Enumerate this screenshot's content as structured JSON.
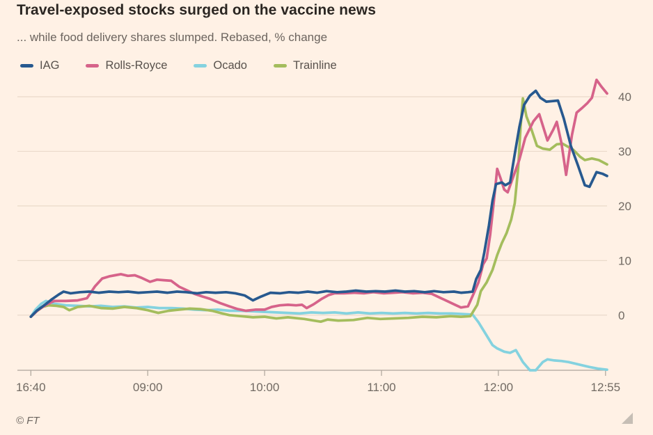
{
  "header": {
    "title": "Travel-exposed stocks surged on the vaccine news",
    "subtitle": "... while food delivery shares slumped. Rebased, % change"
  },
  "footer": {
    "source": "© FT"
  },
  "colors": {
    "background": "#FFF1E5",
    "title_text": "#2B2622",
    "subtitle_text": "#6B645E",
    "axis_text": "#716A63",
    "gridline": "#EADACA",
    "axis_line": "#ACA49A",
    "resize_corner": "#C6BEB5"
  },
  "chart_data": {
    "type": "line",
    "title": "Travel-exposed stocks surged on the vaccine news",
    "subtitle": "... while food delivery shares slumped. Rebased, % change",
    "ylabel": "Rebased, % change",
    "legend_position": "top-left",
    "x_axis": {
      "note": "x unit = one axis hour; 0 = 16:40 previous close, 1 = 09:00, 4 = 12:00, 4.917 = 12:55",
      "range": [
        -0.115,
        4.93
      ],
      "ticks": [
        {
          "x": 0,
          "label": "16:40"
        },
        {
          "x": 1,
          "label": "09:00"
        },
        {
          "x": 2,
          "label": "10:00"
        },
        {
          "x": 3,
          "label": "11:00"
        },
        {
          "x": 4,
          "label": "12:00"
        },
        {
          "x": 4.917,
          "label": "12:55"
        }
      ]
    },
    "y_axis": {
      "side": "right",
      "grid": true,
      "range": [
        -10.1,
        43.7
      ],
      "ticks": [
        0,
        10,
        20,
        30,
        40
      ]
    },
    "series": [
      {
        "name": "IAG",
        "color": "#27598F",
        "points": [
          [
            0,
            -0.3
          ],
          [
            0.05,
            0.8
          ],
          [
            0.12,
            1.9
          ],
          [
            0.18,
            2.9
          ],
          [
            0.24,
            3.8
          ],
          [
            0.28,
            4.3
          ],
          [
            0.34,
            4.0
          ],
          [
            0.42,
            4.2
          ],
          [
            0.5,
            4.3
          ],
          [
            0.58,
            4.1
          ],
          [
            0.67,
            4.3
          ],
          [
            0.75,
            4.2
          ],
          [
            0.83,
            4.3
          ],
          [
            0.92,
            4.1
          ],
          [
            1.0,
            4.2
          ],
          [
            1.08,
            4.3
          ],
          [
            1.17,
            4.1
          ],
          [
            1.25,
            4.3
          ],
          [
            1.33,
            4.2
          ],
          [
            1.42,
            4.0
          ],
          [
            1.5,
            4.2
          ],
          [
            1.58,
            4.1
          ],
          [
            1.67,
            4.2
          ],
          [
            1.75,
            4.0
          ],
          [
            1.83,
            3.6
          ],
          [
            1.9,
            2.7
          ],
          [
            1.97,
            3.4
          ],
          [
            2.05,
            4.1
          ],
          [
            2.13,
            4.0
          ],
          [
            2.21,
            4.2
          ],
          [
            2.29,
            4.1
          ],
          [
            2.37,
            4.3
          ],
          [
            2.45,
            4.1
          ],
          [
            2.53,
            4.4
          ],
          [
            2.62,
            4.2
          ],
          [
            2.7,
            4.3
          ],
          [
            2.78,
            4.5
          ],
          [
            2.87,
            4.3
          ],
          [
            2.95,
            4.4
          ],
          [
            3.03,
            4.3
          ],
          [
            3.12,
            4.5
          ],
          [
            3.2,
            4.3
          ],
          [
            3.28,
            4.4
          ],
          [
            3.37,
            4.2
          ],
          [
            3.45,
            4.4
          ],
          [
            3.53,
            4.2
          ],
          [
            3.62,
            4.3
          ],
          [
            3.68,
            4.1
          ],
          [
            3.74,
            4.2
          ],
          [
            3.78,
            4.3
          ],
          [
            3.81,
            6.6
          ],
          [
            3.85,
            8.3
          ],
          [
            3.88,
            11.5
          ],
          [
            3.92,
            16.5
          ],
          [
            3.95,
            21.0
          ],
          [
            3.98,
            24.0
          ],
          [
            4.03,
            24.3
          ],
          [
            4.06,
            23.8
          ],
          [
            4.1,
            24.3
          ],
          [
            4.14,
            29.5
          ],
          [
            4.18,
            34.5
          ],
          [
            4.22,
            38.5
          ],
          [
            4.27,
            40.2
          ],
          [
            4.32,
            41.1
          ],
          [
            4.36,
            39.8
          ],
          [
            4.41,
            39.1
          ],
          [
            4.46,
            39.2
          ],
          [
            4.51,
            39.3
          ],
          [
            4.56,
            36.0
          ],
          [
            4.62,
            31.0
          ],
          [
            4.68,
            27.5
          ],
          [
            4.74,
            23.8
          ],
          [
            4.78,
            23.5
          ],
          [
            4.84,
            26.2
          ],
          [
            4.89,
            25.9
          ],
          [
            4.93,
            25.5
          ]
        ]
      },
      {
        "name": "Rolls-Royce",
        "color": "#D6638A",
        "points": [
          [
            0,
            -0.3
          ],
          [
            0.06,
            0.9
          ],
          [
            0.13,
            1.9
          ],
          [
            0.2,
            2.6
          ],
          [
            0.3,
            2.6
          ],
          [
            0.4,
            2.7
          ],
          [
            0.48,
            3.1
          ],
          [
            0.55,
            5.3
          ],
          [
            0.61,
            6.7
          ],
          [
            0.67,
            7.1
          ],
          [
            0.72,
            7.3
          ],
          [
            0.77,
            7.5
          ],
          [
            0.83,
            7.2
          ],
          [
            0.89,
            7.3
          ],
          [
            0.95,
            6.8
          ],
          [
            1.02,
            6.1
          ],
          [
            1.08,
            6.5
          ],
          [
            1.14,
            6.4
          ],
          [
            1.2,
            6.3
          ],
          [
            1.27,
            5.2
          ],
          [
            1.33,
            4.6
          ],
          [
            1.4,
            3.9
          ],
          [
            1.47,
            3.4
          ],
          [
            1.53,
            3.0
          ],
          [
            1.62,
            2.2
          ],
          [
            1.7,
            1.6
          ],
          [
            1.77,
            1.1
          ],
          [
            1.84,
            0.8
          ],
          [
            1.92,
            1.0
          ],
          [
            2.0,
            1.0
          ],
          [
            2.06,
            1.5
          ],
          [
            2.13,
            1.8
          ],
          [
            2.2,
            1.9
          ],
          [
            2.27,
            1.8
          ],
          [
            2.32,
            1.9
          ],
          [
            2.36,
            1.3
          ],
          [
            2.42,
            2.0
          ],
          [
            2.49,
            3.0
          ],
          [
            2.55,
            3.7
          ],
          [
            2.6,
            4.0
          ],
          [
            2.68,
            4.0
          ],
          [
            2.77,
            4.1
          ],
          [
            2.85,
            4.0
          ],
          [
            2.93,
            4.2
          ],
          [
            3.02,
            4.0
          ],
          [
            3.1,
            4.1
          ],
          [
            3.18,
            4.2
          ],
          [
            3.27,
            4.0
          ],
          [
            3.35,
            4.1
          ],
          [
            3.43,
            3.9
          ],
          [
            3.5,
            3.2
          ],
          [
            3.57,
            2.5
          ],
          [
            3.63,
            1.9
          ],
          [
            3.68,
            1.4
          ],
          [
            3.74,
            1.6
          ],
          [
            3.79,
            4.0
          ],
          [
            3.83,
            6.0
          ],
          [
            3.87,
            9.3
          ],
          [
            3.9,
            10.4
          ],
          [
            3.93,
            14.7
          ],
          [
            3.96,
            20.5
          ],
          [
            3.99,
            26.8
          ],
          [
            4.02,
            25.0
          ],
          [
            4.05,
            23.0
          ],
          [
            4.08,
            22.5
          ],
          [
            4.13,
            25.5
          ],
          [
            4.18,
            28.5
          ],
          [
            4.23,
            32.5
          ],
          [
            4.3,
            35.5
          ],
          [
            4.35,
            36.8
          ],
          [
            4.42,
            32.0
          ],
          [
            4.47,
            34.0
          ],
          [
            4.5,
            35.4
          ],
          [
            4.54,
            31.5
          ],
          [
            4.58,
            25.7
          ],
          [
            4.63,
            33.0
          ],
          [
            4.67,
            37.1
          ],
          [
            4.72,
            38.0
          ],
          [
            4.76,
            38.8
          ],
          [
            4.8,
            39.8
          ],
          [
            4.84,
            43.1
          ],
          [
            4.88,
            41.9
          ],
          [
            4.93,
            40.6
          ]
        ]
      },
      {
        "name": "Ocado",
        "color": "#84D2DF",
        "points": [
          [
            0,
            -0.3
          ],
          [
            0.04,
            1.0
          ],
          [
            0.09,
            2.1
          ],
          [
            0.13,
            2.6
          ],
          [
            0.2,
            2.1
          ],
          [
            0.3,
            1.8
          ],
          [
            0.4,
            1.7
          ],
          [
            0.5,
            1.6
          ],
          [
            0.6,
            1.7
          ],
          [
            0.7,
            1.5
          ],
          [
            0.8,
            1.6
          ],
          [
            0.9,
            1.4
          ],
          [
            1.0,
            1.5
          ],
          [
            1.1,
            1.3
          ],
          [
            1.2,
            1.3
          ],
          [
            1.3,
            1.2
          ],
          [
            1.4,
            1.0
          ],
          [
            1.5,
            0.9
          ],
          [
            1.6,
            1.0
          ],
          [
            1.7,
            0.8
          ],
          [
            1.8,
            0.8
          ],
          [
            1.9,
            0.7
          ],
          [
            2.0,
            0.6
          ],
          [
            2.1,
            0.5
          ],
          [
            2.2,
            0.4
          ],
          [
            2.3,
            0.3
          ],
          [
            2.4,
            0.5
          ],
          [
            2.5,
            0.4
          ],
          [
            2.6,
            0.5
          ],
          [
            2.7,
            0.3
          ],
          [
            2.8,
            0.5
          ],
          [
            2.9,
            0.3
          ],
          [
            3.0,
            0.4
          ],
          [
            3.1,
            0.3
          ],
          [
            3.2,
            0.4
          ],
          [
            3.3,
            0.3
          ],
          [
            3.4,
            0.4
          ],
          [
            3.5,
            0.3
          ],
          [
            3.6,
            0.3
          ],
          [
            3.7,
            0.2
          ],
          [
            3.78,
            0.1
          ],
          [
            3.83,
            -1.3
          ],
          [
            3.89,
            -3.4
          ],
          [
            3.95,
            -5.5
          ],
          [
            3.99,
            -6.1
          ],
          [
            4.05,
            -6.7
          ],
          [
            4.1,
            -6.9
          ],
          [
            4.15,
            -6.4
          ],
          [
            4.21,
            -8.6
          ],
          [
            4.27,
            -10.1
          ],
          [
            4.32,
            -10.1
          ],
          [
            4.38,
            -8.6
          ],
          [
            4.42,
            -8.1
          ],
          [
            4.48,
            -8.3
          ],
          [
            4.54,
            -8.4
          ],
          [
            4.6,
            -8.6
          ],
          [
            4.66,
            -8.9
          ],
          [
            4.72,
            -9.2
          ],
          [
            4.78,
            -9.5
          ],
          [
            4.85,
            -9.8
          ],
          [
            4.93,
            -10.0
          ]
        ]
      },
      {
        "name": "Trainline",
        "color": "#A4BD5D",
        "points": [
          [
            0,
            -0.3
          ],
          [
            0.05,
            0.7
          ],
          [
            0.1,
            1.5
          ],
          [
            0.15,
            1.8
          ],
          [
            0.22,
            1.7
          ],
          [
            0.28,
            1.5
          ],
          [
            0.33,
            0.9
          ],
          [
            0.4,
            1.5
          ],
          [
            0.5,
            1.7
          ],
          [
            0.6,
            1.3
          ],
          [
            0.7,
            1.2
          ],
          [
            0.8,
            1.5
          ],
          [
            0.9,
            1.3
          ],
          [
            1.0,
            0.9
          ],
          [
            1.09,
            0.4
          ],
          [
            1.18,
            0.8
          ],
          [
            1.27,
            1.0
          ],
          [
            1.36,
            1.2
          ],
          [
            1.45,
            1.1
          ],
          [
            1.55,
            0.8
          ],
          [
            1.64,
            0.3
          ],
          [
            1.7,
            0.0
          ],
          [
            1.8,
            -0.2
          ],
          [
            1.9,
            -0.4
          ],
          [
            2.0,
            -0.3
          ],
          [
            2.1,
            -0.6
          ],
          [
            2.2,
            -0.4
          ],
          [
            2.34,
            -0.7
          ],
          [
            2.42,
            -1.0
          ],
          [
            2.48,
            -1.2
          ],
          [
            2.54,
            -0.8
          ],
          [
            2.63,
            -1.0
          ],
          [
            2.76,
            -0.9
          ],
          [
            2.88,
            -0.5
          ],
          [
            2.99,
            -0.7
          ],
          [
            3.11,
            -0.6
          ],
          [
            3.23,
            -0.5
          ],
          [
            3.35,
            -0.3
          ],
          [
            3.47,
            -0.4
          ],
          [
            3.59,
            -0.2
          ],
          [
            3.68,
            -0.3
          ],
          [
            3.76,
            -0.2
          ],
          [
            3.82,
            1.9
          ],
          [
            3.85,
            4.4
          ],
          [
            3.9,
            6.0
          ],
          [
            3.95,
            8.3
          ],
          [
            3.99,
            11.0
          ],
          [
            4.03,
            13.2
          ],
          [
            4.07,
            15.0
          ],
          [
            4.11,
            17.5
          ],
          [
            4.14,
            20.5
          ],
          [
            4.17,
            27.0
          ],
          [
            4.19,
            34.5
          ],
          [
            4.21,
            39.7
          ],
          [
            4.24,
            36.4
          ],
          [
            4.28,
            34.2
          ],
          [
            4.33,
            31.0
          ],
          [
            4.38,
            30.5
          ],
          [
            4.44,
            30.3
          ],
          [
            4.5,
            31.3
          ],
          [
            4.55,
            31.4
          ],
          [
            4.6,
            30.8
          ],
          [
            4.64,
            30.3
          ],
          [
            4.7,
            29.0
          ],
          [
            4.74,
            28.4
          ],
          [
            4.8,
            28.7
          ],
          [
            4.86,
            28.4
          ],
          [
            4.93,
            27.6
          ]
        ]
      }
    ]
  }
}
